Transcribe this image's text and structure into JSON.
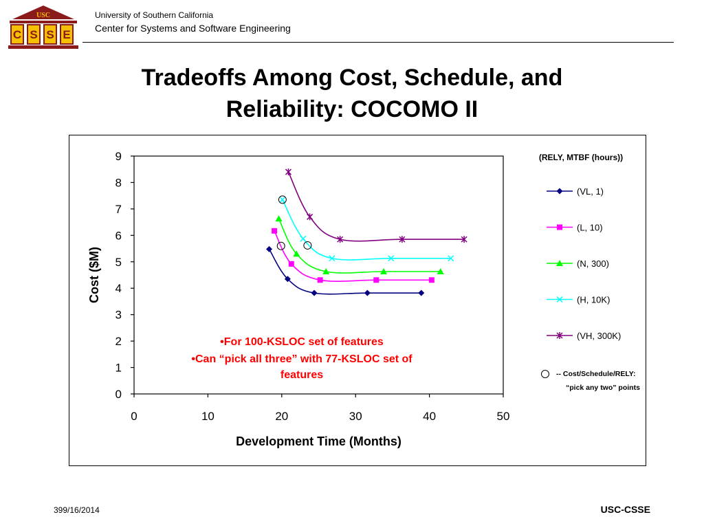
{
  "header": {
    "logo_text": "USC",
    "logo_letters": [
      "C",
      "S",
      "S",
      "E"
    ],
    "university": "University of Southern California",
    "center": "Center for Systems and Software Engineering"
  },
  "slide": {
    "title_line1": "Tradeoffs Among Cost, Schedule, and",
    "title_line2": "Reliability: COCOMO II"
  },
  "footer": {
    "slide_number": "39",
    "date": "9/16/2014",
    "org": "USC-CSSE"
  },
  "colors": {
    "vl": "#000080",
    "l": "#ff00ff",
    "n": "#00ff00",
    "h": "#00ffff",
    "vh": "#800080",
    "annotation": "#ff0000",
    "logo": "#8b1a1a"
  },
  "chart_data": {
    "type": "line",
    "xlabel": "Development Time (Months)",
    "ylabel": "Cost ($M)",
    "xlim": [
      0,
      50
    ],
    "ylim": [
      0,
      9
    ],
    "xticks": [
      0,
      10,
      20,
      30,
      40,
      50
    ],
    "yticks": [
      0,
      1,
      2,
      3,
      4,
      5,
      6,
      7,
      8,
      9
    ],
    "legend_title": "(RELY, MTBF (hours))",
    "legend_position": "right",
    "series": [
      {
        "name": "(VL, 1)",
        "marker": "diamond",
        "color": "#000080",
        "points": [
          [
            18.3,
            5.48
          ],
          [
            20.8,
            4.35
          ],
          [
            24.4,
            3.82
          ],
          [
            31.6,
            3.82
          ],
          [
            38.9,
            3.82
          ]
        ]
      },
      {
        "name": "(L, 10)",
        "marker": "square",
        "color": "#ff00ff",
        "points": [
          [
            19.0,
            6.17
          ],
          [
            21.3,
            4.92
          ],
          [
            25.2,
            4.31
          ],
          [
            32.8,
            4.31
          ],
          [
            40.3,
            4.31
          ]
        ]
      },
      {
        "name": "(N, 300)",
        "marker": "triangle",
        "color": "#00ff00",
        "points": [
          [
            19.6,
            6.63
          ],
          [
            22.0,
            5.3
          ],
          [
            26.0,
            4.63
          ],
          [
            33.8,
            4.63
          ],
          [
            41.5,
            4.63
          ]
        ]
      },
      {
        "name": "(H, 10K)",
        "marker": "x",
        "color": "#00ffff",
        "points": [
          [
            20.1,
            7.35
          ],
          [
            22.9,
            5.87
          ],
          [
            26.8,
            5.13
          ],
          [
            34.8,
            5.13
          ],
          [
            42.9,
            5.13
          ]
        ]
      },
      {
        "name": "(VH, 300K)",
        "marker": "star",
        "color": "#800080",
        "points": [
          [
            20.9,
            8.4
          ],
          [
            23.8,
            6.7
          ],
          [
            27.9,
            5.85
          ],
          [
            36.3,
            5.85
          ],
          [
            44.7,
            5.85
          ]
        ]
      }
    ],
    "highlight_points": [
      [
        20.1,
        7.35
      ],
      [
        19.9,
        5.6
      ],
      [
        23.5,
        5.62
      ]
    ],
    "highlight_legend": [
      "-- Cost/Schedule/RELY:",
      "“pick any two” points"
    ],
    "annotations": [
      "•For 100-KSLOC set of features",
      "•Can “pick all three” with 77-KSLOC set of",
      "features"
    ]
  }
}
